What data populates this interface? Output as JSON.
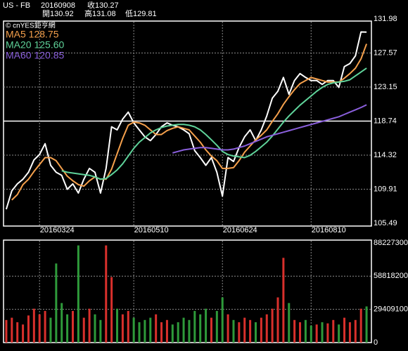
{
  "chart_data": [
    {
      "type": "line",
      "symbol": "US - FB",
      "date": "20160908",
      "close": "收130.27",
      "open": "開130.92",
      "high": "高131.08",
      "low": "低129.81",
      "watermark": "© cnYES鉅亨網",
      "categories": [
        null,
        null,
        null,
        null,
        null,
        null,
        "20160324",
        null,
        null,
        null,
        null,
        null,
        null,
        null,
        null,
        null,
        null,
        null,
        null,
        null,
        null,
        null,
        null,
        "20160510",
        null,
        null,
        null,
        null,
        null,
        null,
        null,
        null,
        null,
        null,
        null,
        null,
        null,
        null,
        null,
        "20160624",
        null,
        null,
        null,
        null,
        null,
        null,
        null,
        null,
        null,
        null,
        null,
        null,
        null,
        null,
        null,
        "20160810",
        null,
        null,
        null,
        null,
        null,
        null,
        null,
        null,
        null,
        null
      ],
      "ylim": [
        105.49,
        131.98
      ],
      "yticks": [
        105.49,
        109.91,
        114.32,
        118.74,
        123.15,
        127.57,
        131.98
      ],
      "grid": true,
      "series": [
        {
          "color": "#ffffff",
          "values": [
            107.3,
            109.7,
            110.6,
            111.2,
            112.1,
            113.7,
            114.4,
            115.8,
            113.0,
            112.1,
            111.7,
            109.9,
            110.6,
            109.4,
            111.2,
            112.6,
            112.1,
            109.4,
            112.6,
            118.0,
            117.6,
            119.0,
            119.9,
            118.5,
            117.6,
            116.7,
            116.2,
            117.0,
            118.0,
            118.5,
            118.2,
            118.0,
            117.6,
            117.1,
            114.9,
            114.0,
            113.0,
            114.0,
            112.1,
            109.0,
            114.0,
            113.5,
            115.3,
            116.7,
            117.6,
            116.2,
            117.6,
            119.4,
            121.7,
            122.6,
            124.4,
            122.2,
            124.0,
            124.9,
            124.4,
            124.0,
            124.0,
            123.5,
            124.0,
            124.0,
            123.1,
            125.8,
            126.2,
            127.2,
            130.3,
            130.27
          ]
        },
        {
          "name": "MA5 128.75",
          "color": "#f5a04c",
          "values": [
            null,
            108.5,
            109.2,
            110.5,
            111.2,
            112.2,
            113.1,
            114.0,
            114.0,
            113.6,
            112.6,
            111.6,
            111.0,
            110.5,
            110.3,
            111.0,
            111.5,
            111.2,
            111.2,
            112.5,
            114.5,
            116.5,
            118.2,
            118.6,
            118.5,
            118.2,
            117.6,
            117.0,
            117.0,
            117.5,
            117.8,
            118.0,
            117.8,
            117.6,
            116.8,
            116.0,
            115.0,
            114.2,
            113.6,
            112.6,
            112.6,
            112.7,
            113.6,
            114.7,
            115.5,
            116.3,
            116.9,
            117.6,
            118.7,
            119.7,
            120.9,
            121.9,
            122.8,
            123.6,
            124.0,
            124.4,
            124.2,
            124.0,
            123.8,
            123.8,
            123.8,
            124.3,
            124.9,
            125.6,
            126.8,
            128.75
          ]
        },
        {
          "name": "MA20 125.60",
          "color": "#5fd39a",
          "values": [
            null,
            null,
            null,
            null,
            null,
            null,
            null,
            null,
            null,
            null,
            112.3,
            112.1,
            112.0,
            111.9,
            111.8,
            111.7,
            111.5,
            111.2,
            111.3,
            111.8,
            112.4,
            113.2,
            114.2,
            115.2,
            116.0,
            116.6,
            117.2,
            117.6,
            117.9,
            118.1,
            118.2,
            118.3,
            118.3,
            118.2,
            118.0,
            117.6,
            117.0,
            116.3,
            115.6,
            114.8,
            114.4,
            114.2,
            114.1,
            114.0,
            114.3,
            114.8,
            115.4,
            116.0,
            116.8,
            117.7,
            118.6,
            119.4,
            120.1,
            120.8,
            121.4,
            122.0,
            122.6,
            123.1,
            123.5,
            123.7,
            123.8,
            123.9,
            124.1,
            124.6,
            125.1,
            125.6
          ]
        },
        {
          "name": "MA60 120.85",
          "color": "#8a5fdc",
          "values": [
            null,
            null,
            null,
            null,
            null,
            null,
            null,
            null,
            null,
            null,
            null,
            null,
            null,
            null,
            null,
            null,
            null,
            null,
            null,
            null,
            null,
            null,
            null,
            null,
            null,
            null,
            null,
            null,
            null,
            null,
            114.6,
            114.8,
            115.0,
            115.1,
            115.2,
            115.3,
            115.3,
            115.2,
            115.1,
            115.0,
            115.0,
            115.1,
            115.3,
            115.5,
            115.8,
            116.1,
            116.4,
            116.7,
            116.9,
            117.1,
            117.3,
            117.5,
            117.7,
            117.9,
            118.1,
            118.3,
            118.5,
            118.7,
            118.9,
            119.1,
            119.3,
            119.6,
            119.9,
            120.2,
            120.5,
            120.85
          ]
        }
      ]
    },
    {
      "type": "bar",
      "ylim": [
        0,
        88227300
      ],
      "yticks": [
        0,
        29409100,
        58818200,
        88227300
      ],
      "grid": true,
      "up_color": "#d9302c",
      "down_color": "#2e9a3a",
      "values": [
        20000000,
        22000000,
        18000000,
        16000000,
        24000000,
        30000000,
        25000000,
        28000000,
        22000000,
        70000000,
        35000000,
        25000000,
        28000000,
        86000000,
        22000000,
        30000000,
        25000000,
        20000000,
        86000000,
        58000000,
        30000000,
        25000000,
        28000000,
        22000000,
        18000000,
        20000000,
        22000000,
        25000000,
        18000000,
        20000000,
        16000000,
        18000000,
        22000000,
        20000000,
        28000000,
        25000000,
        30000000,
        22000000,
        28000000,
        40000000,
        25000000,
        20000000,
        18000000,
        22000000,
        20000000,
        18000000,
        22000000,
        25000000,
        30000000,
        40000000,
        75000000,
        35000000,
        20000000,
        18000000,
        20000000,
        15000000,
        16000000,
        18000000,
        17000000,
        20000000,
        16000000,
        22000000,
        18000000,
        20000000,
        30000000,
        32000000
      ]
    }
  ]
}
